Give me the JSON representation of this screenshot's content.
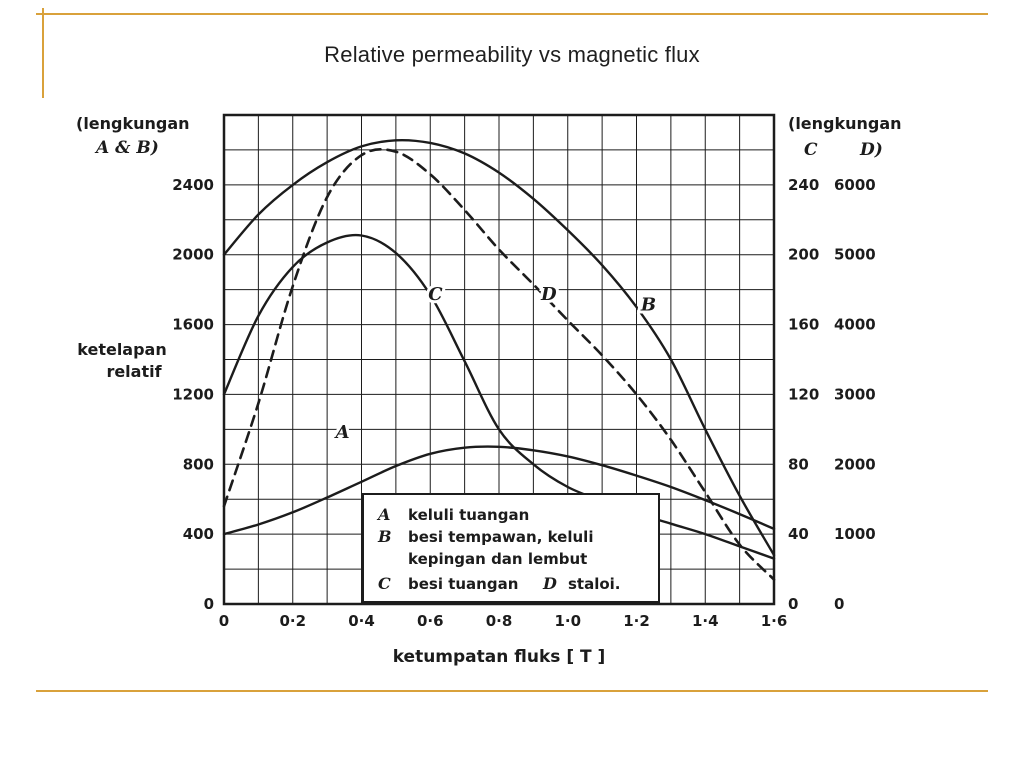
{
  "slide": {
    "title": "Relative permeability vs magnetic flux",
    "accent_color": "#D9A13B"
  },
  "chart_data": {
    "type": "line",
    "ink_color": "#1c1c1c",
    "x_axis": {
      "label": "ketumpatan fluks [ T ]",
      "min": 0,
      "max": 1.6,
      "tick_values": [
        0,
        0.2,
        0.4,
        0.6,
        0.8,
        1.0,
        1.2,
        1.4,
        1.6
      ],
      "tick_labels": [
        "0",
        "0·2",
        "0·4",
        "0·6",
        "0·8",
        "1·0",
        "1·2",
        "1·4",
        "1·6"
      ]
    },
    "left_axis": {
      "label": "ketelapan relatif",
      "applies_to": "(lengkungan A & B)",
      "min": 0,
      "max": 2800,
      "ticks": [
        0,
        400,
        800,
        1200,
        1600,
        2000,
        2400
      ]
    },
    "right_axis_c": {
      "header": "C",
      "ticks": [
        0,
        40,
        80,
        120,
        160,
        200,
        240
      ],
      "scale_to_left": 10
    },
    "right_axis_d": {
      "header": "D)",
      "ticks": [
        0,
        1000,
        2000,
        3000,
        4000,
        5000,
        6000
      ],
      "scale_to_left": 0.4
    },
    "labels": {
      "left_note1": "(lengkungan",
      "left_note2": "A & B)",
      "left_axis_title1": "ketelapan",
      "left_axis_title2": "relatif",
      "right_note1": "(lengkungan",
      "right_c": "C",
      "right_d": "D)",
      "x_title": "ketumpatan fluks [ T ]"
    },
    "grid": {
      "x_step": 0.1,
      "y_step": 200
    },
    "x_values": [
      0,
      0.1,
      0.2,
      0.3,
      0.4,
      0.5,
      0.6,
      0.7,
      0.8,
      0.9,
      1.0,
      1.1,
      1.2,
      1.3,
      1.4,
      1.5,
      1.6
    ],
    "series": [
      {
        "name": "B",
        "axis": "left",
        "to_left": 1,
        "dash": false,
        "label_pos": {
          "x": 1.235,
          "left_y": 1680
        },
        "values": [
          2000,
          2230,
          2400,
          2530,
          2620,
          2655,
          2640,
          2580,
          2470,
          2320,
          2140,
          1940,
          1700,
          1400,
          1000,
          620,
          280
        ]
      },
      {
        "name": "C",
        "axis": "right_c",
        "to_left": 10,
        "dash": false,
        "label_pos": {
          "x": 0.615,
          "left_y": 1740
        },
        "values": [
          120,
          165,
          193,
          207,
          211,
          201,
          177,
          139,
          100,
          80,
          67,
          59,
          52,
          46,
          40,
          33,
          26
        ]
      },
      {
        "name": "D",
        "axis": "right_d",
        "to_left": 0.4,
        "dash": true,
        "label_pos": {
          "x": 0.945,
          "left_y": 1740
        },
        "values": [
          1400,
          2875,
          4550,
          5825,
          6425,
          6475,
          6150,
          5640,
          5075,
          4575,
          4060,
          3560,
          3000,
          2350,
          1600,
          850,
          350
        ]
      },
      {
        "name": "A",
        "axis": "left",
        "to_left": 1,
        "dash": false,
        "label_pos": {
          "x": 0.345,
          "left_y": 950
        },
        "values": [
          400,
          455,
          525,
          610,
          700,
          790,
          860,
          895,
          900,
          880,
          845,
          795,
          735,
          670,
          595,
          515,
          430
        ]
      }
    ],
    "legend": {
      "lines": [
        {
          "k": "A",
          "t": "keluli tuangan"
        },
        {
          "k": "B",
          "t": "besi tempawan, keluli"
        },
        {
          "k": "",
          "t": "kepingan dan lembut"
        },
        {
          "k": "C",
          "t": "besi tuangan",
          "k2": "D",
          "t2": "staloi."
        }
      ]
    }
  }
}
